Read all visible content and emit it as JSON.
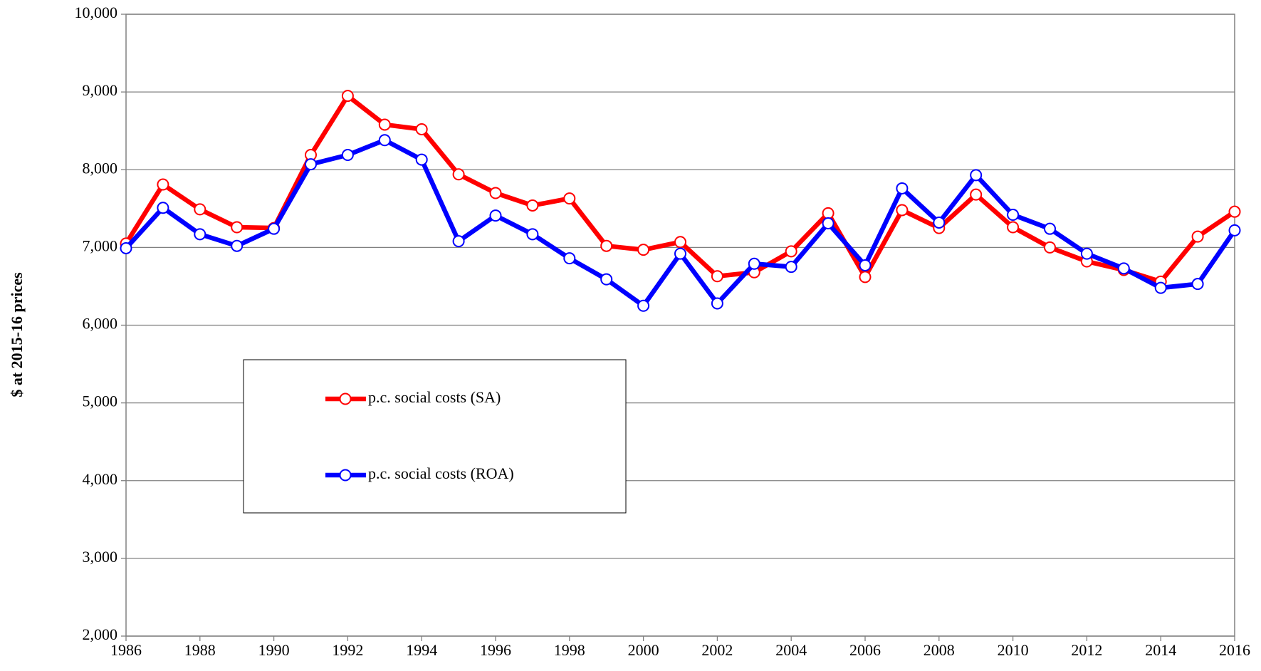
{
  "chart_data": {
    "type": "line",
    "y_label": "$ at 2015-16 prices",
    "x": [
      1986,
      1987,
      1988,
      1989,
      1990,
      1991,
      1992,
      1993,
      1994,
      1995,
      1996,
      1997,
      1998,
      1999,
      2000,
      2001,
      2002,
      2003,
      2004,
      2005,
      2006,
      2007,
      2008,
      2009,
      2010,
      2011,
      2012,
      2013,
      2014,
      2015,
      2016
    ],
    "series": [
      {
        "name": "p.c. social costs (SA)",
        "color": "#ff0000",
        "values": [
          7050,
          7810,
          7490,
          7260,
          7250,
          8190,
          8950,
          8580,
          8520,
          7940,
          7700,
          7540,
          7630,
          7020,
          6970,
          7070,
          6630,
          6680,
          6950,
          7440,
          6620,
          7480,
          7250,
          7680,
          7260,
          7000,
          6820,
          6710,
          6560,
          7140,
          7460
        ]
      },
      {
        "name": "p.c. social costs (ROA)",
        "color": "#0000ff",
        "values": [
          6990,
          7510,
          7170,
          7020,
          7240,
          8070,
          8190,
          8380,
          8130,
          7080,
          7410,
          7170,
          6860,
          6590,
          6250,
          6920,
          6280,
          6790,
          6750,
          7310,
          6770,
          7760,
          7320,
          7930,
          7420,
          7240,
          6920,
          6730,
          6480,
          6530,
          7220
        ]
      }
    ],
    "xlim": [
      1986,
      2016
    ],
    "xticks": [
      1986,
      1988,
      1990,
      1992,
      1994,
      1996,
      1998,
      2000,
      2002,
      2004,
      2006,
      2008,
      2010,
      2012,
      2014,
      2016
    ],
    "ylim": [
      2000,
      10000
    ],
    "yticks": [
      {
        "value": 2000,
        "label": "2,000"
      },
      {
        "value": 3000,
        "label": "3,000"
      },
      {
        "value": 4000,
        "label": "4,000"
      },
      {
        "value": 5000,
        "label": "5,000"
      },
      {
        "value": 6000,
        "label": "6,000"
      },
      {
        "value": 7000,
        "label": "7,000"
      },
      {
        "value": 8000,
        "label": "8,000"
      },
      {
        "value": 9000,
        "label": "9,000"
      },
      {
        "value": 10000,
        "label": "10,000"
      }
    ],
    "grid": true
  }
}
